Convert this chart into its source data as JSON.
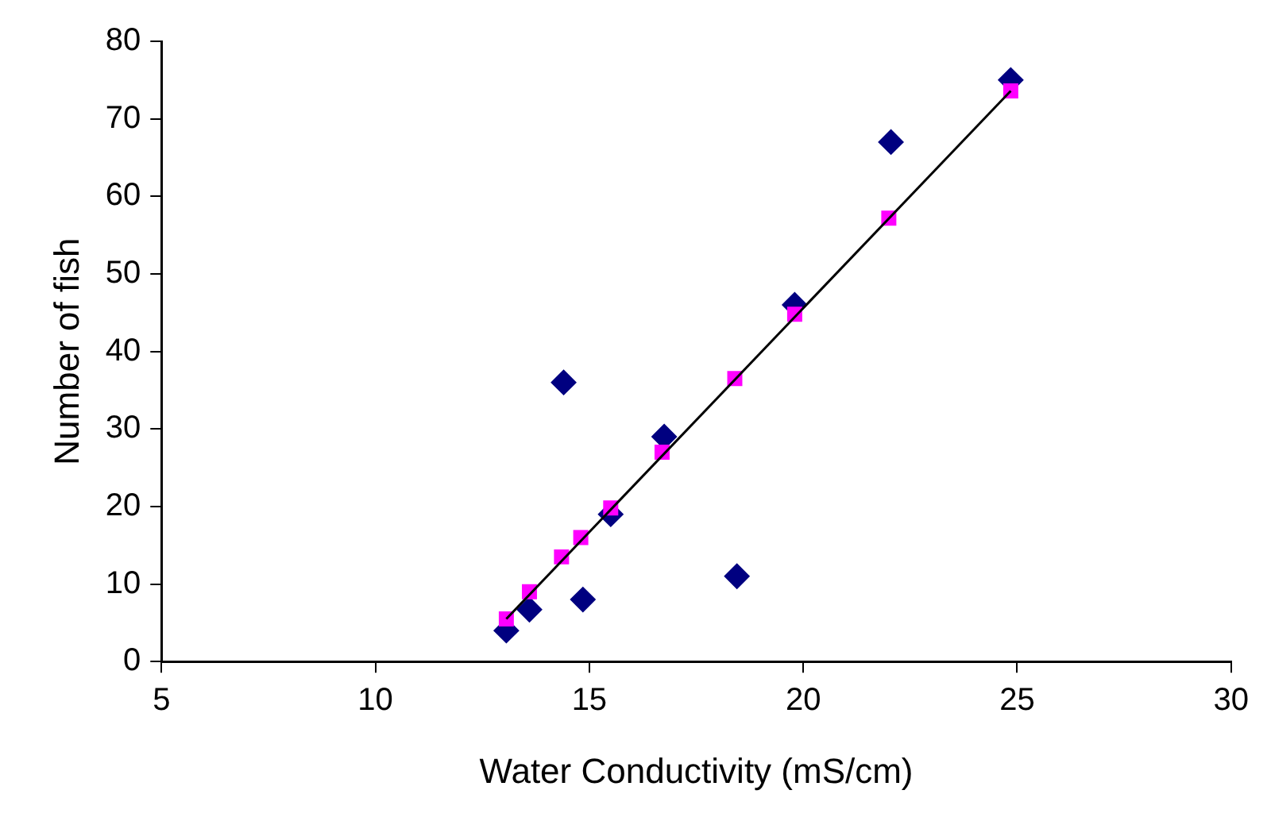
{
  "chart_data": {
    "type": "scatter",
    "xlabel": "Water Conductivity (mS/cm)",
    "ylabel": "Number of fish",
    "xlim": [
      5,
      30
    ],
    "xticks": [
      5,
      10,
      15,
      20,
      25,
      30
    ],
    "ylim": [
      0,
      80
    ],
    "yticks": [
      0,
      10,
      20,
      30,
      40,
      50,
      60,
      70,
      80
    ],
    "grid": false,
    "legend": false,
    "series": [
      {
        "marker": "diamond",
        "color": "#000080",
        "x": [
          13.06,
          13.6,
          14.4,
          14.85,
          15.5,
          16.75,
          18.45,
          19.8,
          22.05,
          24.85
        ],
        "values": [
          4,
          6.7,
          36,
          8,
          19,
          29,
          11,
          46,
          67,
          75
        ]
      },
      {
        "marker": "square",
        "color": "#ff00ff",
        "x": [
          13.06,
          13.6,
          14.35,
          14.8,
          15.5,
          16.7,
          18.4,
          19.8,
          22.0,
          24.85
        ],
        "values": [
          5.5,
          9,
          13.5,
          16,
          19.8,
          27,
          36.5,
          44.8,
          57.2,
          73.6
        ]
      },
      {
        "type": "line",
        "marker": "none",
        "color": "#000000",
        "x": [
          13.06,
          24.85
        ],
        "values": [
          5.5,
          73.6
        ]
      }
    ]
  }
}
